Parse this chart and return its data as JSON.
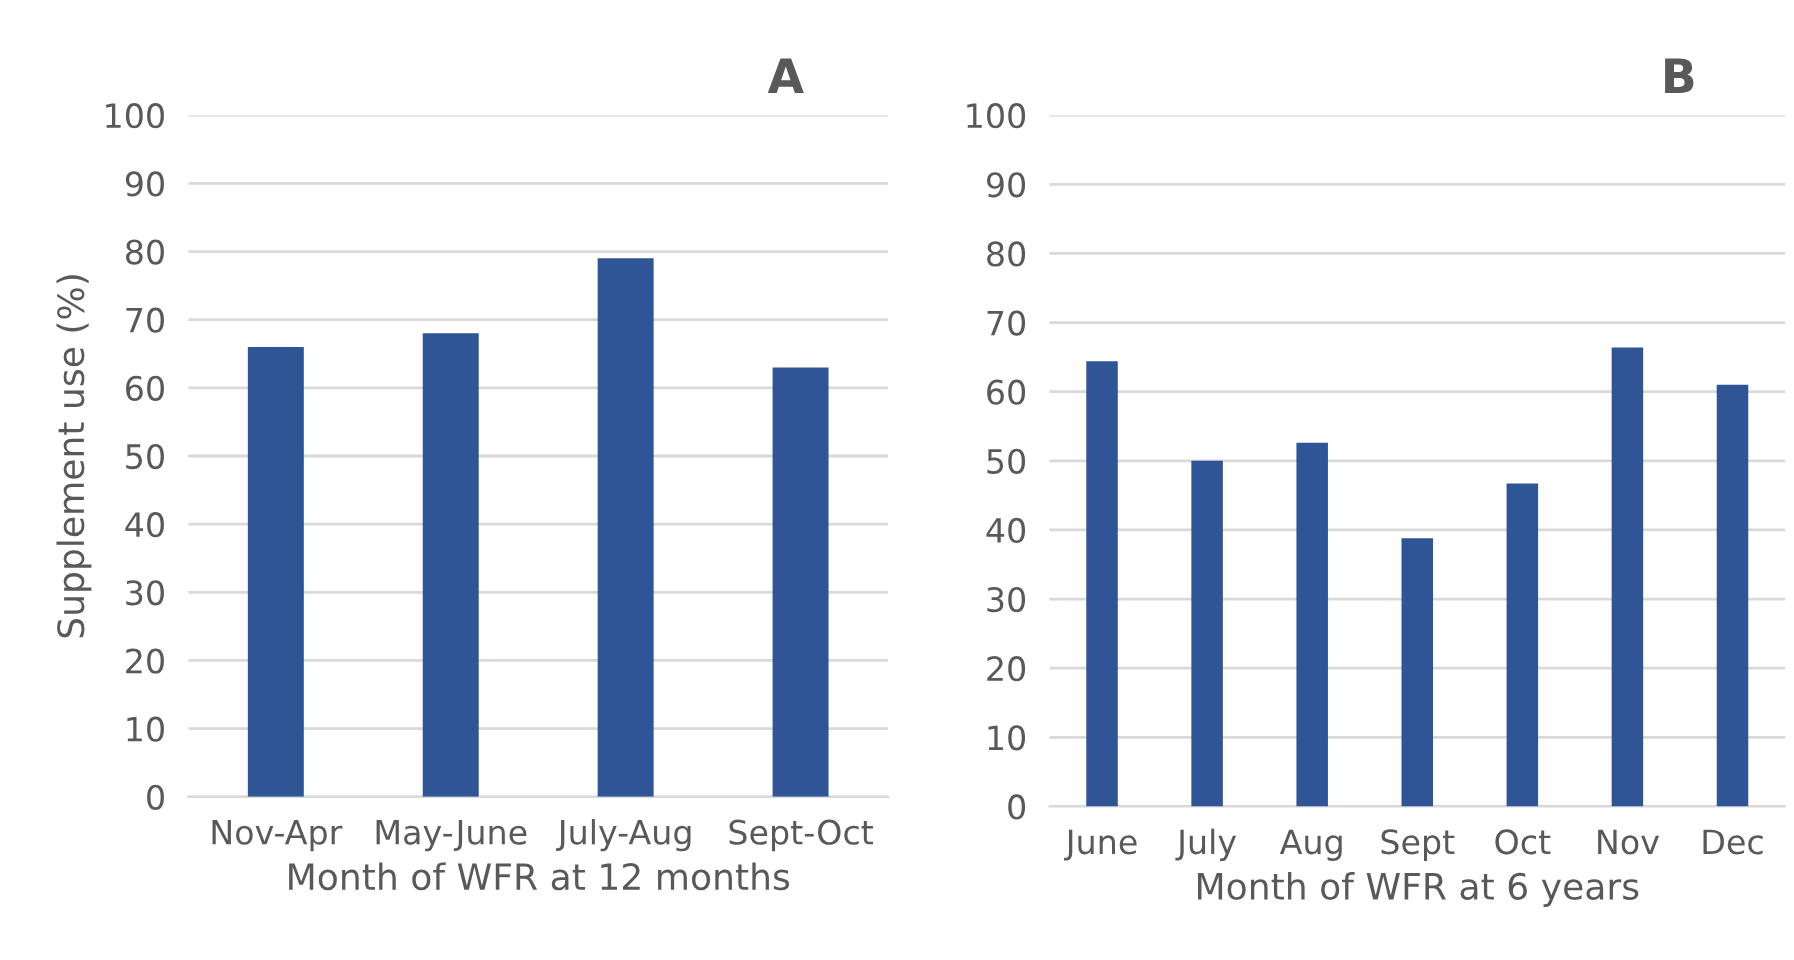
{
  "chart_data": [
    {
      "type": "bar",
      "title": "A",
      "categories": [
        "Nov-Apr",
        "May-June",
        "July-Aug",
        "Sept-Oct"
      ],
      "values": [
        66,
        68,
        79,
        63
      ],
      "color": "#2f5597",
      "ylabel": "Supplement use (%)",
      "xlabel": "Month of WFR at 12 months",
      "ylim": [
        0,
        100
      ],
      "yticks": [
        0,
        10,
        20,
        30,
        40,
        50,
        60,
        70,
        80,
        90,
        100
      ],
      "grid": "y"
    },
    {
      "type": "bar",
      "title": "B",
      "categories": [
        "June",
        "July",
        "Aug",
        "Sept",
        "Oct",
        "Nov",
        "Dec"
      ],
      "values": [
        64.4,
        50,
        52.6,
        38.8,
        46.7,
        66.4,
        61
      ],
      "color": "#2f5597",
      "xlabel": "Month of WFR at 6 years",
      "ylim": [
        0,
        100
      ],
      "yticks": [
        0,
        10,
        20,
        30,
        40,
        50,
        60,
        70,
        80,
        90,
        100
      ],
      "grid": "y"
    }
  ]
}
